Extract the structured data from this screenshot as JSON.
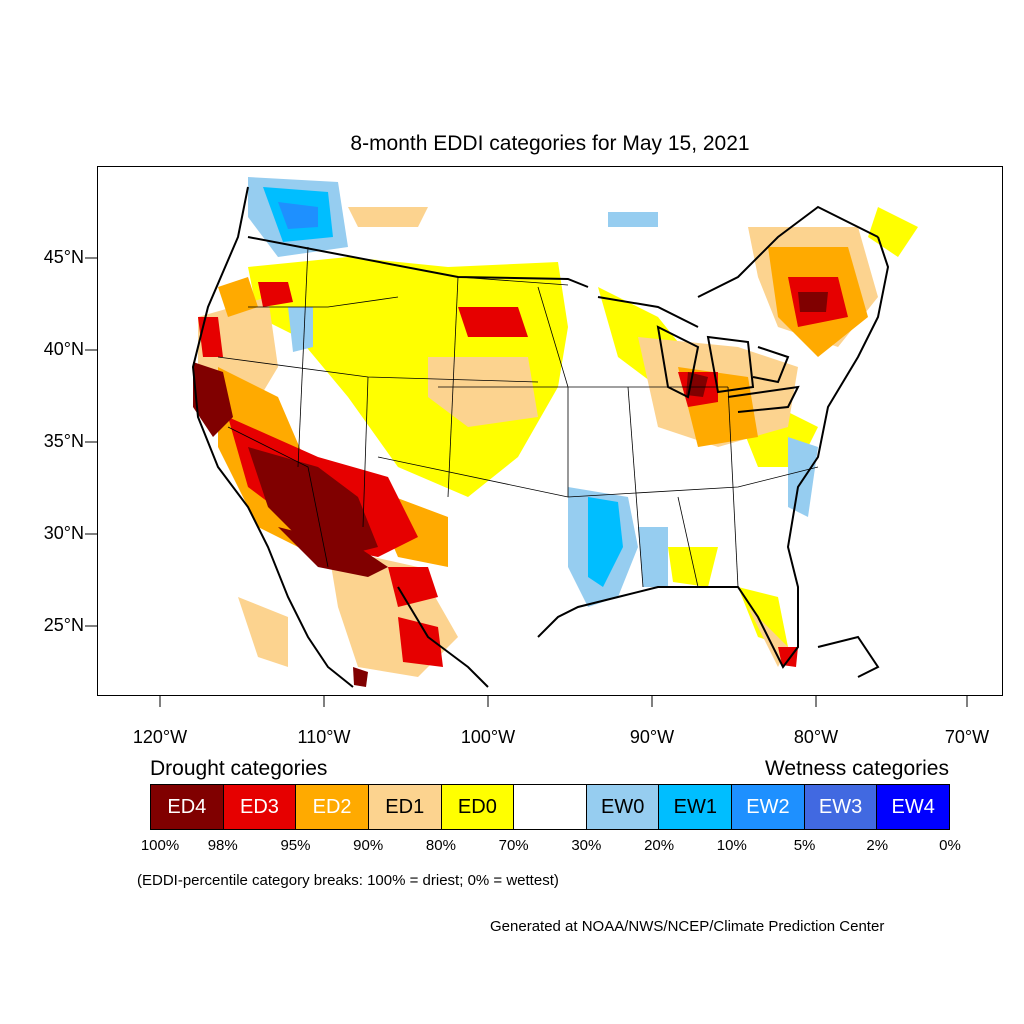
{
  "title": "8-month EDDI categories for May 15, 2021",
  "map": {
    "lat_labels": [
      "45°N",
      "40°N",
      "35°N",
      "30°N",
      "25°N"
    ],
    "lon_labels": [
      "120°W",
      "110°W",
      "100°W",
      "90°W",
      "80°W",
      "70°W"
    ],
    "colors": {
      "ED4": "#800000",
      "ED3": "#e60000",
      "ED2": "#ffaa00",
      "ED1": "#fcd38f",
      "ED0": "#ffff00",
      "normal": "#ffffff",
      "EW0": "#96cdf0",
      "EW1": "#00beff",
      "EW2": "#1e90ff",
      "EW3": "#4169e1",
      "EW4": "#0000ff"
    }
  },
  "legend": {
    "drought_heading": "Drought categories",
    "wetness_heading": "Wetness categories",
    "categories": [
      {
        "label": "ED4",
        "color": "#800000",
        "text_color": "#ffffff"
      },
      {
        "label": "ED3",
        "color": "#e60000",
        "text_color": "#ffffff"
      },
      {
        "label": "ED2",
        "color": "#ffaa00",
        "text_color": "#ffffff"
      },
      {
        "label": "ED1",
        "color": "#fcd38f",
        "text_color": "#000000"
      },
      {
        "label": "ED0",
        "color": "#ffff00",
        "text_color": "#000000"
      },
      {
        "label": "",
        "color": "#ffffff",
        "text_color": "#000000"
      },
      {
        "label": "EW0",
        "color": "#96cdf0",
        "text_color": "#000000"
      },
      {
        "label": "EW1",
        "color": "#00beff",
        "text_color": "#000000"
      },
      {
        "label": "EW2",
        "color": "#1e90ff",
        "text_color": "#ffffff"
      },
      {
        "label": "EW3",
        "color": "#4169e1",
        "text_color": "#ffffff"
      },
      {
        "label": "EW4",
        "color": "#0000ff",
        "text_color": "#ffffff"
      }
    ],
    "percentiles": [
      "100%",
      "98%",
      "95%",
      "90%",
      "80%",
      "70%",
      "30%",
      "20%",
      "10%",
      "5%",
      "2%",
      "0%"
    ]
  },
  "breaks_note": "(EDDI-percentile category breaks: 100% = driest; 0% = wettest)",
  "credit": "Generated at NOAA/NWS/NCEP/Climate Prediction Center"
}
